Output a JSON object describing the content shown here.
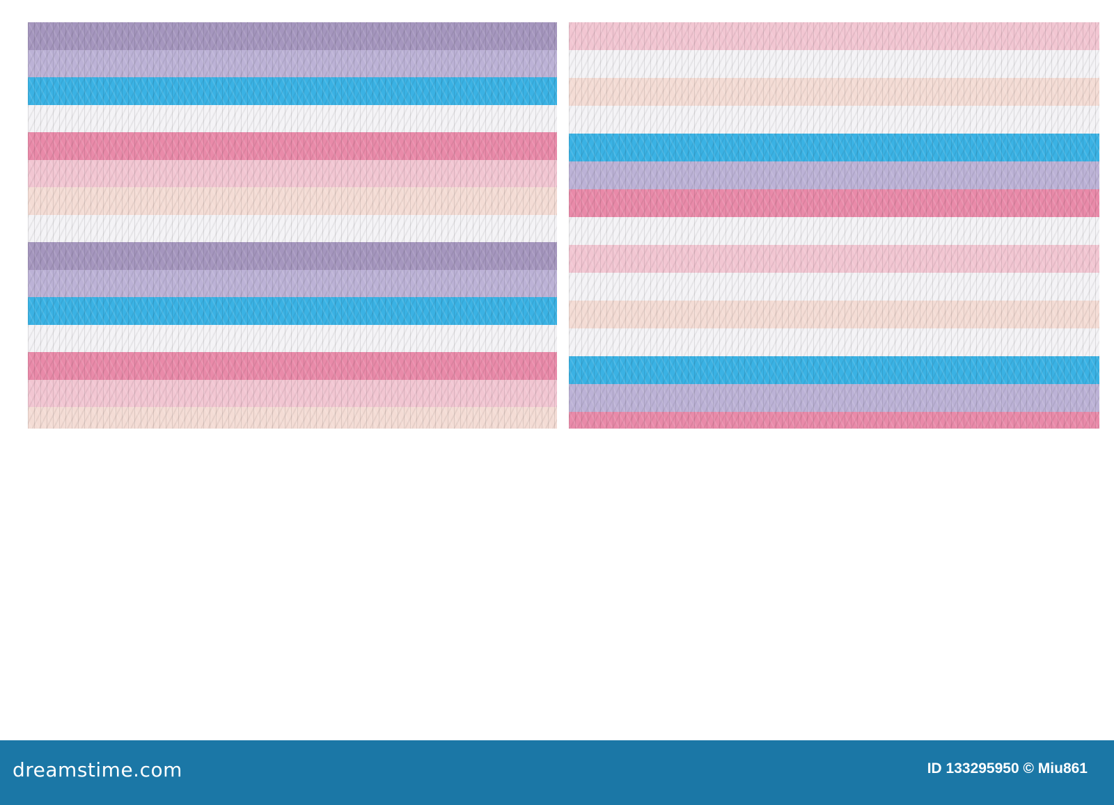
{
  "colors": {
    "white": "#f4f3f6",
    "pink": "#e98aa9",
    "light_pink": "#f2c6d2",
    "cream": "#f4dcd5",
    "purple": "#a596be",
    "lavender": "#bcb2d6",
    "blue": "#3ab2e4",
    "footer": "#1b77a6"
  },
  "left_pattern_colors": [
    "purple",
    "lavender",
    "blue",
    "white",
    "pink",
    "light_pink",
    "cream",
    "white",
    "purple",
    "lavender",
    "blue",
    "white",
    "pink",
    "light_pink",
    "cream",
    "white",
    "purple",
    "lavender",
    "blue",
    "white",
    "pink",
    "light_pink",
    "cream",
    "white",
    "purple"
  ],
  "right_pattern_colors": [
    "light_pink",
    "white",
    "cream",
    "white",
    "blue",
    "lavender",
    "pink",
    "white",
    "light_pink",
    "white",
    "cream",
    "white",
    "blue",
    "lavender",
    "pink",
    "white",
    "light_pink",
    "white",
    "cream",
    "white",
    "blue",
    "lavender",
    "pink",
    "white",
    "light_pink"
  ],
  "footer": {
    "brand": "dreamstime.com",
    "stock_id": "ID 133295950 © Miu861"
  }
}
